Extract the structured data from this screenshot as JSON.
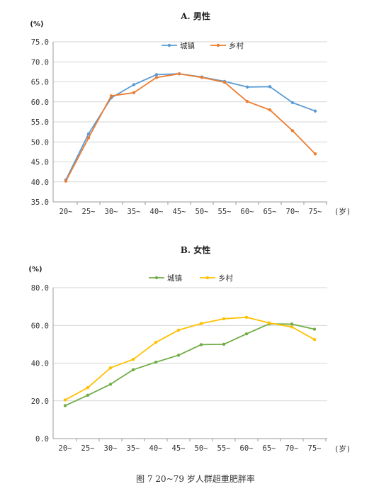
{
  "chart_data": [
    {
      "type": "line",
      "title": "A. 男性",
      "unit_label": "(%)",
      "x_unit_label": "(岁)",
      "categories": [
        "20~",
        "25~",
        "30~",
        "35~",
        "40~",
        "45~",
        "50~",
        "55~",
        "60~",
        "65~",
        "70~",
        "75~"
      ],
      "ylim": [
        35.0,
        75.0
      ],
      "yticks": [
        "35.0",
        "40.0",
        "45.0",
        "50.0",
        "55.0",
        "60.0",
        "65.0",
        "70.0",
        "75.0"
      ],
      "grid": true,
      "legend_position": "top-center",
      "series": [
        {
          "name": "城镇",
          "color": "#5b9bd5",
          "values": [
            40.5,
            52.0,
            61.0,
            64.3,
            66.8,
            67.0,
            66.2,
            65.1,
            63.7,
            63.8,
            59.8,
            57.7
          ]
        },
        {
          "name": "乡村",
          "color": "#ed7d31",
          "values": [
            40.2,
            51.0,
            61.5,
            62.3,
            66.1,
            67.0,
            66.1,
            64.9,
            60.1,
            58.0,
            52.8,
            47.0
          ]
        }
      ]
    },
    {
      "type": "line",
      "title": "B. 女性",
      "unit_label": "(%)",
      "x_unit_label": "(岁)",
      "categories": [
        "20~",
        "25~",
        "30~",
        "35~",
        "40~",
        "45~",
        "50~",
        "55~",
        "60~",
        "65~",
        "70~",
        "75~"
      ],
      "ylim": [
        0.0,
        80.0
      ],
      "yticks": [
        "0.0",
        "20.0",
        "40.0",
        "60.0",
        "80.0"
      ],
      "grid": true,
      "legend_position": "top-center",
      "series": [
        {
          "name": "城镇",
          "color": "#70ad47",
          "values": [
            17.5,
            23.0,
            28.8,
            36.5,
            40.5,
            44.2,
            49.8,
            50.0,
            55.5,
            60.8,
            60.7,
            58.0
          ]
        },
        {
          "name": "乡村",
          "color": "#ffc000",
          "values": [
            20.5,
            27.0,
            37.5,
            42.0,
            51.0,
            57.5,
            61.0,
            63.5,
            64.3,
            61.3,
            59.2,
            52.5
          ]
        }
      ]
    }
  ],
  "caption": "图 7    20~79 岁人群超重肥胖率"
}
